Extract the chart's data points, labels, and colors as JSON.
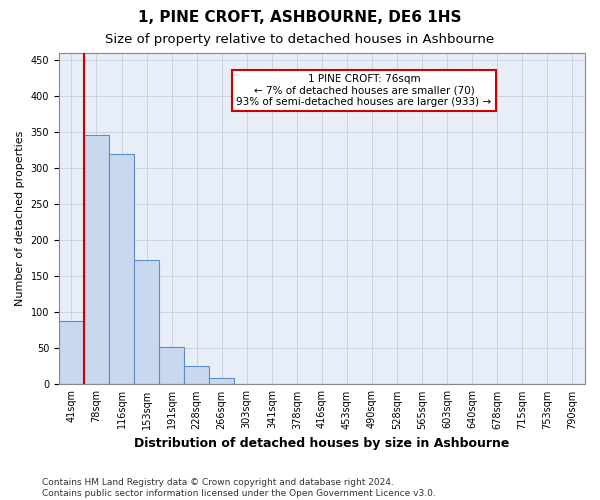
{
  "title": "1, PINE CROFT, ASHBOURNE, DE6 1HS",
  "subtitle": "Size of property relative to detached houses in Ashbourne",
  "xlabel": "Distribution of detached houses by size in Ashbourne",
  "ylabel": "Number of detached properties",
  "bar_labels": [
    "41sqm",
    "78sqm",
    "116sqm",
    "153sqm",
    "191sqm",
    "228sqm",
    "266sqm",
    "303sqm",
    "341sqm",
    "378sqm",
    "416sqm",
    "453sqm",
    "490sqm",
    "528sqm",
    "565sqm",
    "603sqm",
    "640sqm",
    "678sqm",
    "715sqm",
    "753sqm",
    "790sqm"
  ],
  "bar_values": [
    88,
    345,
    320,
    173,
    52,
    25,
    9,
    0,
    0,
    0,
    0,
    0,
    0,
    0,
    0,
    0,
    0,
    0,
    0,
    0,
    0
  ],
  "bar_color": "#c8d8ee",
  "bar_edge_color": "#5b8dc8",
  "ylim": [
    0,
    460
  ],
  "yticks": [
    0,
    50,
    100,
    150,
    200,
    250,
    300,
    350,
    400,
    450
  ],
  "vline_x_index": 1,
  "vline_color": "#cc0000",
  "bin_width": 1,
  "annotation_line1": "1 PINE CROFT: 76sqm",
  "annotation_line2": "← 7% of detached houses are smaller (70)",
  "annotation_line3": "93% of semi-detached houses are larger (933) →",
  "annotation_box_color": "#ffffff",
  "annotation_box_edge": "#cc0000",
  "footer": "Contains HM Land Registry data © Crown copyright and database right 2024.\nContains public sector information licensed under the Open Government Licence v3.0.",
  "title_fontsize": 11,
  "subtitle_fontsize": 9.5,
  "xlabel_fontsize": 9,
  "ylabel_fontsize": 8,
  "tick_fontsize": 7,
  "footer_fontsize": 6.5,
  "annot_fontsize": 7.5,
  "grid_color": "#c8ccd8",
  "bg_color": "#e8eef8"
}
